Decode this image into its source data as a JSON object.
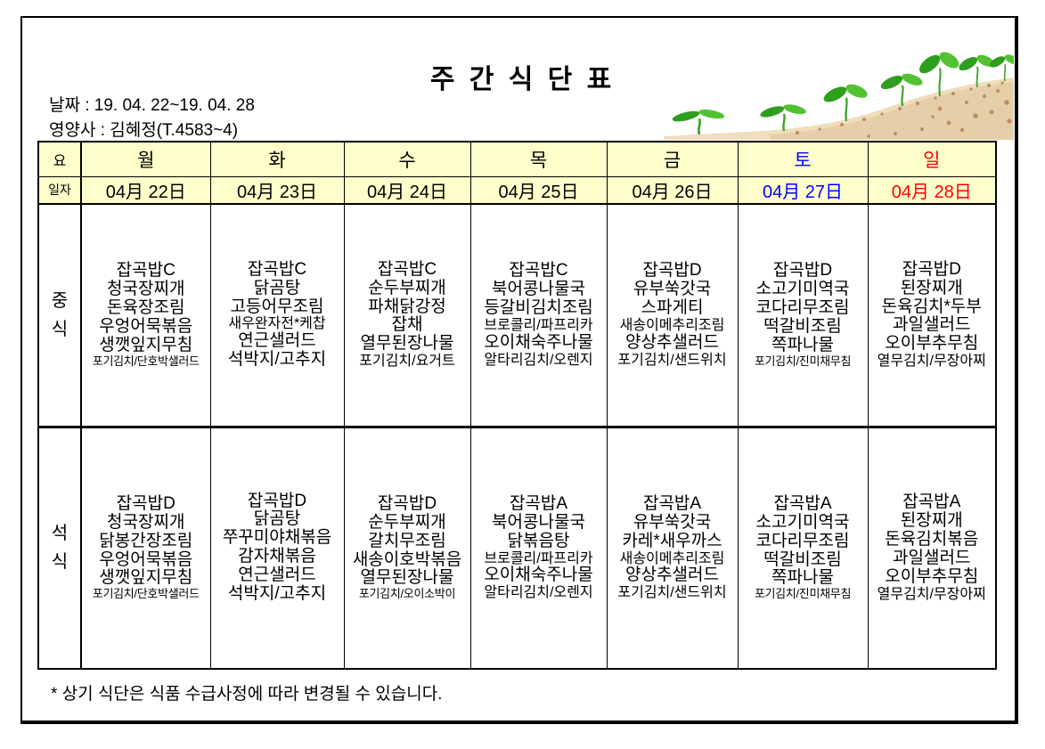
{
  "page": {
    "title": "주 간 식 단 표",
    "date_line": "날짜 : 19. 04. 22~19. 04. 28",
    "nutritionist_line": "영양사 : 김혜정(T.4583~4)",
    "footer_note": "* 상기 식단은 식품 수급사정에 따라 변경될 수 있습니다."
  },
  "colors": {
    "header_bg": "#FFFFCC",
    "weekday_text": "#000000",
    "saturday_text": "#0000FF",
    "sunday_text": "#FF0000",
    "border": "#000000"
  },
  "decoration": {
    "name": "seedlings-growing-on-soil-illustration"
  },
  "table": {
    "corner_day_label": "요",
    "corner_date_label": "일자",
    "days": [
      {
        "label": "월",
        "date": "04月 22日",
        "color": "#000000"
      },
      {
        "label": "화",
        "date": "04月 23日",
        "color": "#000000"
      },
      {
        "label": "수",
        "date": "04月 24日",
        "color": "#000000"
      },
      {
        "label": "목",
        "date": "04月 25日",
        "color": "#000000"
      },
      {
        "label": "금",
        "date": "04月 26日",
        "color": "#000000"
      },
      {
        "label": "토",
        "date": "04月 27日",
        "color": "#0000FF"
      },
      {
        "label": "일",
        "date": "04月 28日",
        "color": "#FF0000"
      }
    ],
    "sections": [
      {
        "label": "중식",
        "cells": [
          [
            "잡곡밥C",
            "청국장찌개",
            "돈육장조림",
            "우엉어묵볶음",
            "생깻잎지무침",
            "포기김치/단호박샐러드"
          ],
          [
            "잡곡밥C",
            "닭곰탕",
            "고등어무조림",
            "새우완자전*케찹",
            "연근샐러드",
            "석박지/고추지"
          ],
          [
            "잡곡밥C",
            "순두부찌개",
            "파채닭강정",
            "잡채",
            "열무된장나물",
            "포기김치/요거트"
          ],
          [
            "잡곡밥C",
            "북어콩나물국",
            "등갈비김치조림",
            "브로콜리/파프리카",
            "오이채숙주나물",
            "알타리김치/오렌지"
          ],
          [
            "잡곡밥D",
            "유부쑥갓국",
            "스파게티",
            "새송이메추리조림",
            "양상추샐러드",
            "포기김치/샌드위치"
          ],
          [
            "잡곡밥D",
            "소고기미역국",
            "코다리무조림",
            "떡갈비조림",
            "쪽파나물",
            "포기김치/진미채무침"
          ],
          [
            "잡곡밥D",
            "된장찌개",
            "돈육김치*두부",
            "과일샐러드",
            "오이부추무침",
            "열무김치/무장아찌"
          ]
        ]
      },
      {
        "label": "석식",
        "cells": [
          [
            "잡곡밥D",
            "청국장찌개",
            "닭봉간장조림",
            "우엉어묵볶음",
            "생깻잎지무침",
            "포기김치/단호박샐러드"
          ],
          [
            "잡곡밥D",
            "닭곰탕",
            "쭈꾸미야채볶음",
            "감자채볶음",
            "연근샐러드",
            "석박지/고추지"
          ],
          [
            "잡곡밥D",
            "순두부찌개",
            "갈치무조림",
            "새송이호박볶음",
            "열무된장나물",
            "포기김치/오이소박이"
          ],
          [
            "잡곡밥A",
            "북어콩나물국",
            "닭볶음탕",
            "브로콜리/파프리카",
            "오이채숙주나물",
            "알타리김치/오렌지"
          ],
          [
            "잡곡밥A",
            "유부쑥갓국",
            "카레*새우까스",
            "새송이메추리조림",
            "양상추샐러드",
            "포기김치/샌드위치"
          ],
          [
            "잡곡밥A",
            "소고기미역국",
            "코다리무조림",
            "떡갈비조림",
            "쪽파나물",
            "포기김치/진미채무침"
          ],
          [
            "잡곡밥A",
            "된장찌개",
            "돈육김치볶음",
            "과일샐러드",
            "오이부추무침",
            "열무김치/무장아찌"
          ]
        ]
      }
    ]
  }
}
